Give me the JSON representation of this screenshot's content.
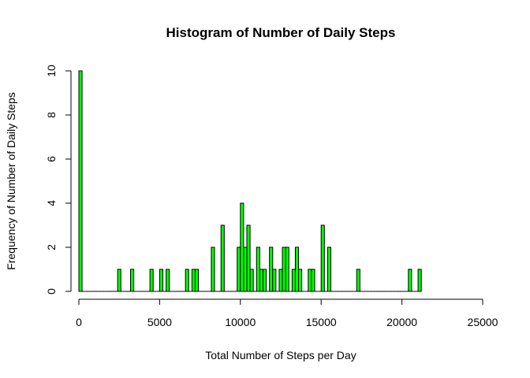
{
  "chart_data": {
    "type": "bar",
    "title": "Histogram of Number of Daily Steps",
    "xlabel": "Total Number of Steps per Day",
    "ylabel": "Frequency of Number of Daily Steps",
    "xlim": [
      0,
      25000
    ],
    "ylim": [
      0,
      10
    ],
    "bin_width": 200,
    "xticks": [
      0,
      5000,
      10000,
      15000,
      20000,
      25000
    ],
    "yticks": [
      0,
      2,
      4,
      6,
      8,
      10
    ],
    "bar_color": "#00ff00",
    "bins": [
      {
        "start": 0,
        "count": 10
      },
      {
        "start": 2400,
        "count": 1
      },
      {
        "start": 3200,
        "count": 1
      },
      {
        "start": 4400,
        "count": 1
      },
      {
        "start": 5000,
        "count": 1
      },
      {
        "start": 5400,
        "count": 1
      },
      {
        "start": 6600,
        "count": 1
      },
      {
        "start": 7000,
        "count": 1
      },
      {
        "start": 7200,
        "count": 1
      },
      {
        "start": 8200,
        "count": 2
      },
      {
        "start": 8800,
        "count": 3
      },
      {
        "start": 9800,
        "count": 2
      },
      {
        "start": 10000,
        "count": 4
      },
      {
        "start": 10200,
        "count": 2
      },
      {
        "start": 10400,
        "count": 3
      },
      {
        "start": 10600,
        "count": 1
      },
      {
        "start": 11000,
        "count": 2
      },
      {
        "start": 11200,
        "count": 1
      },
      {
        "start": 11400,
        "count": 1
      },
      {
        "start": 11800,
        "count": 2
      },
      {
        "start": 12000,
        "count": 1
      },
      {
        "start": 12400,
        "count": 1
      },
      {
        "start": 12600,
        "count": 2
      },
      {
        "start": 12800,
        "count": 2
      },
      {
        "start": 13200,
        "count": 1
      },
      {
        "start": 13400,
        "count": 2
      },
      {
        "start": 13600,
        "count": 1
      },
      {
        "start": 14200,
        "count": 1
      },
      {
        "start": 14400,
        "count": 1
      },
      {
        "start": 15000,
        "count": 3
      },
      {
        "start": 15400,
        "count": 2
      },
      {
        "start": 17200,
        "count": 1
      },
      {
        "start": 20400,
        "count": 1
      },
      {
        "start": 21000,
        "count": 1
      }
    ]
  }
}
